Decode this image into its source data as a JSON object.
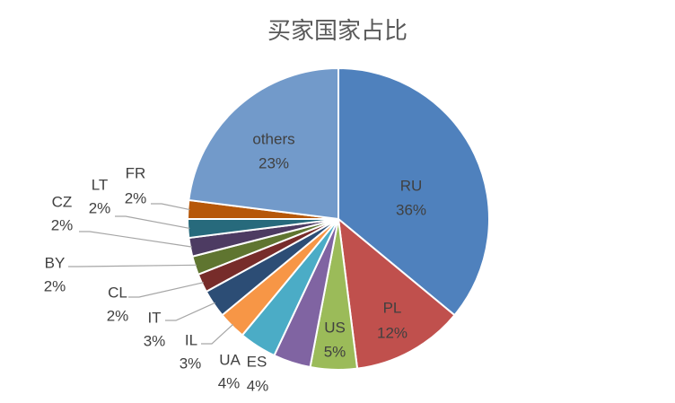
{
  "chart_data": {
    "type": "pie",
    "title": "买家国家占比",
    "categories": [
      "RU",
      "PL",
      "US",
      "ES",
      "UA",
      "IL",
      "IT",
      "CL",
      "BY",
      "CZ",
      "LT",
      "FR",
      "others"
    ],
    "values": [
      36,
      12,
      5,
      4,
      4,
      3,
      3,
      2,
      2,
      2,
      2,
      2,
      23
    ],
    "value_labels": [
      "36%",
      "12%",
      "5%",
      "4%",
      "4%",
      "3%",
      "3%",
      "2%",
      "2%",
      "2%",
      "2%",
      "2%",
      "23%"
    ],
    "colors": [
      "#4f81bd",
      "#c0504d",
      "#9bbb59",
      "#8064a2",
      "#4bacc6",
      "#f79646",
      "#2c4d75",
      "#772c2a",
      "#5f7530",
      "#4d3b62",
      "#276a7c",
      "#b65708",
      "#729aca"
    ]
  }
}
